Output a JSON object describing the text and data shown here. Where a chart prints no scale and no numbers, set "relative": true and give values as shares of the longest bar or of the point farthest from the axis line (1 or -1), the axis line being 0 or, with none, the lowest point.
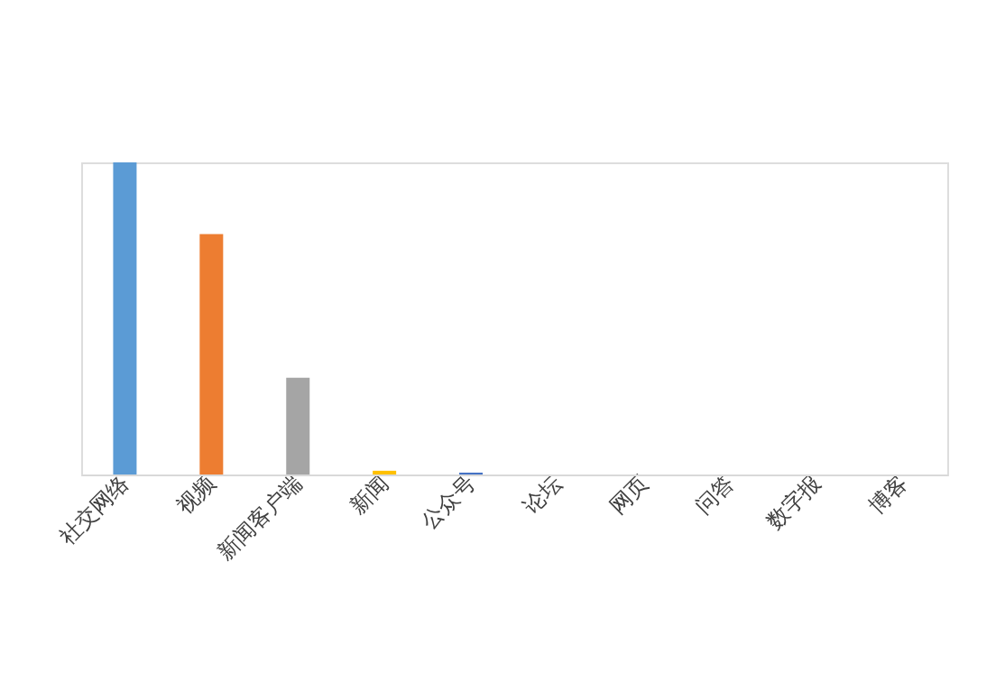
{
  "chart_data": {
    "type": "bar",
    "relative": true,
    "categories": [
      "社交网络",
      "视频",
      "新闻客户端",
      "新闻",
      "公众号",
      "论坛",
      "网页",
      "问答",
      "数字报",
      "博客"
    ],
    "values": [
      1,
      0.77,
      0.31,
      0.012,
      0.006,
      0,
      0,
      0,
      0,
      0
    ],
    "colors": [
      "#5b9bd5",
      "#ed7d31",
      "#a5a5a5",
      "#ffc000",
      "#4472c4",
      "#70ad47",
      "#264478",
      "#9e480e",
      "#636363",
      "#997300"
    ]
  }
}
